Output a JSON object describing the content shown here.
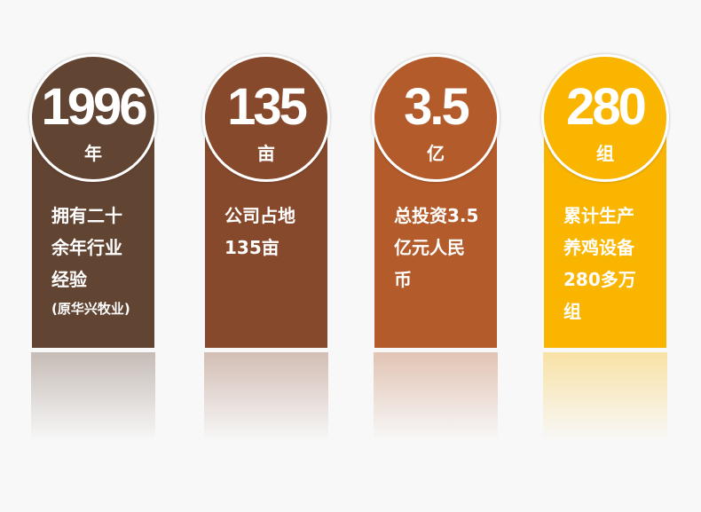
{
  "cards": [
    {
      "number": "1996",
      "unit": "年",
      "lines": [
        "拥有二十",
        "余年行业",
        "经验"
      ],
      "note": "(原华兴牧业)",
      "color": "#624433"
    },
    {
      "number": "135",
      "unit": "亩",
      "lines": [
        "公司占地",
        "135亩"
      ],
      "color": "#86492c"
    },
    {
      "number": "3.5",
      "unit": "亿",
      "lines": [
        "总投资3.5",
        "亿元人民",
        "币"
      ],
      "color": "#b35b2b"
    },
    {
      "number": "280",
      "unit": "组",
      "lines": [
        "累计生产",
        "养鸡设备",
        "280多万",
        "组"
      ],
      "color": "#fab500"
    }
  ]
}
